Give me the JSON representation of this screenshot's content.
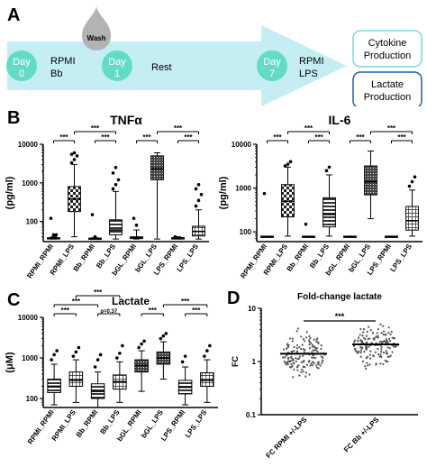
{
  "panels": {
    "a": "A",
    "b": "B",
    "c": "C",
    "d": "D"
  },
  "timeline": {
    "wash": "Wash",
    "day0_line1": "Day",
    "day0_line2": "0",
    "day0_label1": "RPMI",
    "day0_label2": "Bb",
    "day1_line1": "Day",
    "day1_line2": "1",
    "rest": "Rest",
    "day7_line1": "Day",
    "day7_line2": "7",
    "day7_label1": "RPMI",
    "day7_label2": "LPS",
    "out1_line1": "Cytokine",
    "out1_line2": "Production",
    "out2_line1": "Lactate",
    "out2_line2": "Production",
    "colors": {
      "arrow": "#c5eef2",
      "circle": "#63dcc6",
      "drop": "#b3b3b3",
      "box1": "#7fd6dc",
      "box2": "#1e5aa8"
    }
  },
  "chart_data": [
    {
      "type": "box",
      "title": "TNFα",
      "ylabel": "(pg/ml)",
      "yscale": "log",
      "ylim": [
        30,
        10000
      ],
      "yticks": [
        100,
        1000,
        10000
      ],
      "ytick_labels": [
        "100",
        "1000",
        "10000"
      ],
      "categories": [
        "RPMI_RPMI",
        "RPMI_LPS",
        "Bb_RPMI",
        "Bb_LPS",
        "bGL_RPMI",
        "bGL_LPS",
        "LPS_RPMI",
        "LPS_LPS"
      ],
      "boxes": [
        {
          "min": 35,
          "q1": 35,
          "median": 37,
          "q3": 38,
          "max": 40,
          "outliers": [
            120,
            45,
            45
          ],
          "pattern": "none"
        },
        {
          "min": 40,
          "q1": 180,
          "median": 380,
          "q3": 800,
          "max": 3000,
          "outliers": [
            3300,
            4000,
            5000,
            5500,
            6000
          ],
          "pattern": "checker"
        },
        {
          "min": 35,
          "q1": 35,
          "median": 36,
          "q3": 37,
          "max": 38,
          "outliers": [
            150,
            40
          ],
          "pattern": "none"
        },
        {
          "min": 35,
          "q1": 45,
          "median": 60,
          "q3": 110,
          "max": 600,
          "outliers": [
            700,
            900,
            1200,
            1800,
            2500
          ],
          "pattern": "hatch"
        },
        {
          "min": 35,
          "q1": 36,
          "median": 38,
          "q3": 40,
          "max": 60,
          "outliers": [
            120,
            80
          ],
          "pattern": "none"
        },
        {
          "min": 35,
          "q1": 1200,
          "median": 2300,
          "q3": 5000,
          "max": 6000,
          "outliers": [],
          "pattern": "dots"
        },
        {
          "min": 35,
          "q1": 35,
          "median": 37,
          "q3": 38,
          "max": 40,
          "outliers": [
            40
          ],
          "pattern": "none"
        },
        {
          "min": 35,
          "q1": 42,
          "median": 55,
          "q3": 75,
          "max": 200,
          "outliers": [
            250,
            350,
            500,
            700,
            900
          ],
          "pattern": "grid"
        }
      ],
      "significance": [
        {
          "from": 0,
          "to": 1,
          "level": 0,
          "label": "***"
        },
        {
          "from": 1,
          "to": 3,
          "level": 1,
          "label": "***"
        },
        {
          "from": 2,
          "to": 3,
          "level": 0,
          "label": "***"
        },
        {
          "from": 4,
          "to": 5,
          "level": 0,
          "label": "***"
        },
        {
          "from": 5,
          "to": 7,
          "level": 1,
          "label": "***"
        },
        {
          "from": 6,
          "to": 7,
          "level": 0,
          "label": "***"
        }
      ]
    },
    {
      "type": "box",
      "title": "IL-6",
      "ylabel": "(pg/ml)",
      "yscale": "log",
      "ylim": [
        60,
        10000
      ],
      "yticks": [
        100,
        1000,
        10000
      ],
      "ytick_labels": [
        "100",
        "1000",
        "10000"
      ],
      "categories": [
        "RPMI_RPMI",
        "RPMI_LPS",
        "Bb_RPMI",
        "Bb_LPS",
        "bGL_RPMI",
        "bGL_LPS",
        "LPS_RPMI",
        "LPS_LPS"
      ],
      "boxes": [
        {
          "min": 78,
          "q1": 78,
          "median": 78,
          "q3": 80,
          "max": 80,
          "outliers": [
            750
          ],
          "pattern": "none"
        },
        {
          "min": 80,
          "q1": 220,
          "median": 500,
          "q3": 1200,
          "max": 3000,
          "outliers": [
            3200,
            3500,
            4000
          ],
          "pattern": "checker"
        },
        {
          "min": 78,
          "q1": 78,
          "median": 78,
          "q3": 80,
          "max": 80,
          "outliers": [
            150
          ],
          "pattern": "none"
        },
        {
          "min": 80,
          "q1": 130,
          "median": 250,
          "q3": 600,
          "max": 2000,
          "outliers": [
            2500,
            3000
          ],
          "pattern": "hatch"
        },
        {
          "min": 78,
          "q1": 78,
          "median": 78,
          "q3": 80,
          "max": 80,
          "outliers": [],
          "pattern": "none"
        },
        {
          "min": 200,
          "q1": 700,
          "median": 1400,
          "q3": 3200,
          "max": 7000,
          "outliers": [],
          "pattern": "dots"
        },
        {
          "min": 78,
          "q1": 78,
          "median": 78,
          "q3": 80,
          "max": 80,
          "outliers": [],
          "pattern": "none"
        },
        {
          "min": 80,
          "q1": 110,
          "median": 180,
          "q3": 380,
          "max": 900,
          "outliers": [
            1100,
            1400,
            1800
          ],
          "pattern": "grid"
        }
      ],
      "significance": [
        {
          "from": 0,
          "to": 1,
          "level": 0,
          "label": "***"
        },
        {
          "from": 1,
          "to": 3,
          "level": 1,
          "label": "***"
        },
        {
          "from": 2,
          "to": 3,
          "level": 0,
          "label": "***"
        },
        {
          "from": 4,
          "to": 5,
          "level": 0,
          "label": "***"
        },
        {
          "from": 5,
          "to": 7,
          "level": 1,
          "label": "***"
        },
        {
          "from": 6,
          "to": 7,
          "level": 0,
          "label": "***"
        }
      ]
    },
    {
      "type": "box",
      "title": "Lactate",
      "ylabel": "(μM)",
      "yscale": "log",
      "ylim": [
        60,
        10000
      ],
      "yticks": [
        100,
        1000,
        10000
      ],
      "ytick_labels": [
        "100",
        "1000",
        "10000"
      ],
      "categories": [
        "RPMI_RPMI",
        "RPMI_LPS",
        "Bb_RPMI",
        "Bb_LPS",
        "bGL_RPMI",
        "bGL_LPS",
        "LPS_RPMI",
        "LPS_LPS"
      ],
      "boxes": [
        {
          "min": 70,
          "q1": 140,
          "median": 200,
          "q3": 300,
          "max": 700,
          "outliers": [
            900,
            1200,
            1500
          ],
          "pattern": "hatch"
        },
        {
          "min": 80,
          "q1": 200,
          "median": 280,
          "q3": 450,
          "max": 900,
          "outliers": [
            1100,
            1400,
            1800
          ],
          "pattern": "grid"
        },
        {
          "min": 60,
          "q1": 100,
          "median": 150,
          "q3": 230,
          "max": 450,
          "outliers": [
            600,
            900,
            1200
          ],
          "pattern": "hatch"
        },
        {
          "min": 80,
          "q1": 170,
          "median": 260,
          "q3": 380,
          "max": 800,
          "outliers": [
            1000,
            1300,
            2000
          ],
          "pattern": "grid"
        },
        {
          "min": 150,
          "q1": 450,
          "median": 650,
          "q3": 900,
          "max": 1500,
          "outliers": [
            1800,
            2200,
            2600
          ],
          "pattern": "dots"
        },
        {
          "min": 300,
          "q1": 700,
          "median": 1000,
          "q3": 1400,
          "max": 2500,
          "outliers": [
            3000,
            3500,
            4000
          ],
          "pattern": "dots"
        },
        {
          "min": 70,
          "q1": 130,
          "median": 190,
          "q3": 280,
          "max": 600,
          "outliers": [
            800,
            1100
          ],
          "pattern": "hatch"
        },
        {
          "min": 80,
          "q1": 200,
          "median": 280,
          "q3": 430,
          "max": 900,
          "outliers": [
            1100,
            1500,
            2000
          ],
          "pattern": "grid"
        }
      ],
      "significance": [
        {
          "from": 0,
          "to": 1,
          "level": 0,
          "label": "***"
        },
        {
          "from": 0,
          "to": 2,
          "level": 1,
          "label": "***"
        },
        {
          "from": 1,
          "to": 3,
          "level": 2,
          "label": "***"
        },
        {
          "from": 2,
          "to": 3,
          "level": 0,
          "label": "p=0.37"
        },
        {
          "from": 4,
          "to": 5,
          "level": 0,
          "label": "***"
        },
        {
          "from": 5,
          "to": 7,
          "level": 1,
          "label": "***"
        },
        {
          "from": 6,
          "to": 7,
          "level": 0,
          "label": "***"
        }
      ]
    },
    {
      "type": "scatter",
      "title": "Fold-change lactate",
      "ylabel": "FC",
      "yscale": "log",
      "ylim": [
        0.1,
        10
      ],
      "yticks": [
        0.1,
        1,
        10
      ],
      "ytick_labels": [
        "0.1",
        "1",
        "10"
      ],
      "categories": [
        "FC RPMI +/-LPS",
        "FC Bb +/-LPS"
      ],
      "groups": [
        {
          "center": 1.4,
          "low": 0.4,
          "high": 5.5,
          "n": 150
        },
        {
          "center": 2.1,
          "low": 0.6,
          "high": 6.5,
          "n": 150
        }
      ],
      "significance": [
        {
          "from": 0,
          "to": 1,
          "level": 0,
          "label": "***"
        }
      ]
    }
  ]
}
